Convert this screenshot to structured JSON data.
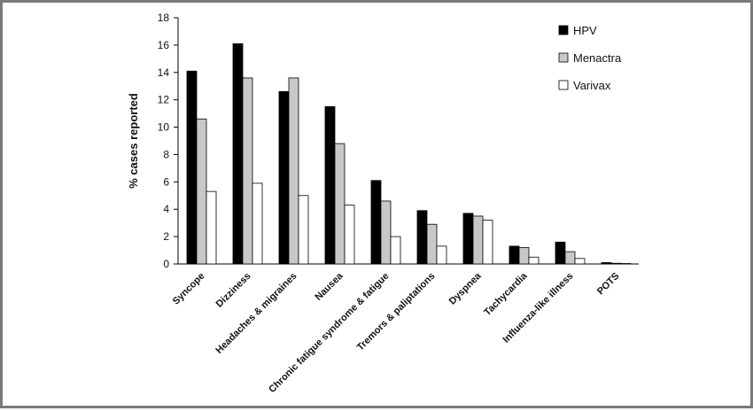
{
  "chart_data": {
    "type": "bar",
    "categories": [
      "Syncope",
      "Dizziness",
      "Headaches & migraines",
      "Nausea",
      "Chronic fatigue syndrome & fatigue",
      "Tremors & paliptations",
      "Dyspnea",
      "Tachycardia",
      "Influenza-like illness",
      "POTS"
    ],
    "series": [
      {
        "name": "HPV",
        "color": "#000000",
        "values": [
          14.1,
          16.1,
          12.6,
          11.5,
          6.1,
          3.9,
          3.7,
          1.3,
          1.6,
          0.1
        ]
      },
      {
        "name": "Menactra",
        "color": "#c8c8c8",
        "values": [
          10.6,
          13.6,
          13.6,
          8.8,
          4.6,
          2.9,
          3.5,
          1.2,
          0.9,
          0.05
        ]
      },
      {
        "name": "Varivax",
        "color": "#ffffff",
        "values": [
          5.3,
          5.9,
          5.0,
          4.3,
          2.0,
          1.3,
          3.2,
          0.5,
          0.4,
          0.02
        ]
      }
    ],
    "ylabel": "% cases reported",
    "ylim": [
      0,
      18
    ],
    "yticks": [
      "0",
      "2",
      "4",
      "6",
      "8",
      "10",
      "12",
      "14",
      "16",
      "18"
    ],
    "grid": false,
    "legend_position": "top-right"
  }
}
